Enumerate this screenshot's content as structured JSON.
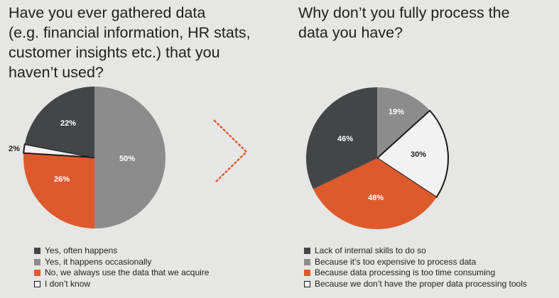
{
  "colors": {
    "dark": "#434547",
    "gray": "#8c8c8c",
    "orange": "#de5a2c",
    "light": "#f2f2f2",
    "outline": "#1a1a1a"
  },
  "chart_data": [
    {
      "type": "pie",
      "title": "Have you ever gathered data\n(e.g. financial information, HR stats,\ncustomer insights etc.) that you\nhaven’t used?",
      "slices": [
        {
          "label": "Yes, it happens occasionally",
          "value": 50,
          "value_label": "50%",
          "color": "#8c8c8c"
        },
        {
          "label": "No, we always use the data that we acquire",
          "value": 26,
          "value_label": "26%",
          "color": "#de5a2c"
        },
        {
          "label": "I don’t know",
          "value": 2,
          "value_label": "2%",
          "color": "#f2f2f2"
        },
        {
          "label": "Yes, often happens",
          "value": 22,
          "value_label": "22%",
          "color": "#434547"
        }
      ],
      "legend": [
        {
          "label": "Yes, often happens",
          "color": "#434547"
        },
        {
          "label": "Yes, it happens occasionally",
          "color": "#8c8c8c"
        },
        {
          "label": "No, we always use the data that we acquire",
          "color": "#de5a2c"
        },
        {
          "label": "I don’t know",
          "color": "#f2f2f2"
        }
      ],
      "legend_position": "bottom"
    },
    {
      "type": "pie",
      "title": "Why don’t you fully process the\ndata you have?",
      "slices": [
        {
          "label": "Because it’s too expensive to process data",
          "value": 19,
          "value_label": "19%",
          "color": "#8c8c8c"
        },
        {
          "label": "Because we don’t have the proper data processing tools",
          "value": 30,
          "value_label": "30%",
          "color": "#f2f2f2"
        },
        {
          "label": "Because data processing is too time consuming",
          "value": 48,
          "value_label": "48%",
          "color": "#de5a2c"
        },
        {
          "label": "Lack of internal skills to do so",
          "value": 46,
          "value_label": "46%",
          "color": "#434547"
        }
      ],
      "legend": [
        {
          "label": "Lack of internal skills to do so",
          "color": "#434547"
        },
        {
          "label": "Because it’s too expensive to process data",
          "color": "#8c8c8c"
        },
        {
          "label": "Because data processing is too time consuming",
          "color": "#de5a2c"
        },
        {
          "label": "Because we don’t have the proper data processing tools",
          "color": "#f2f2f2"
        }
      ],
      "legend_position": "bottom"
    }
  ]
}
